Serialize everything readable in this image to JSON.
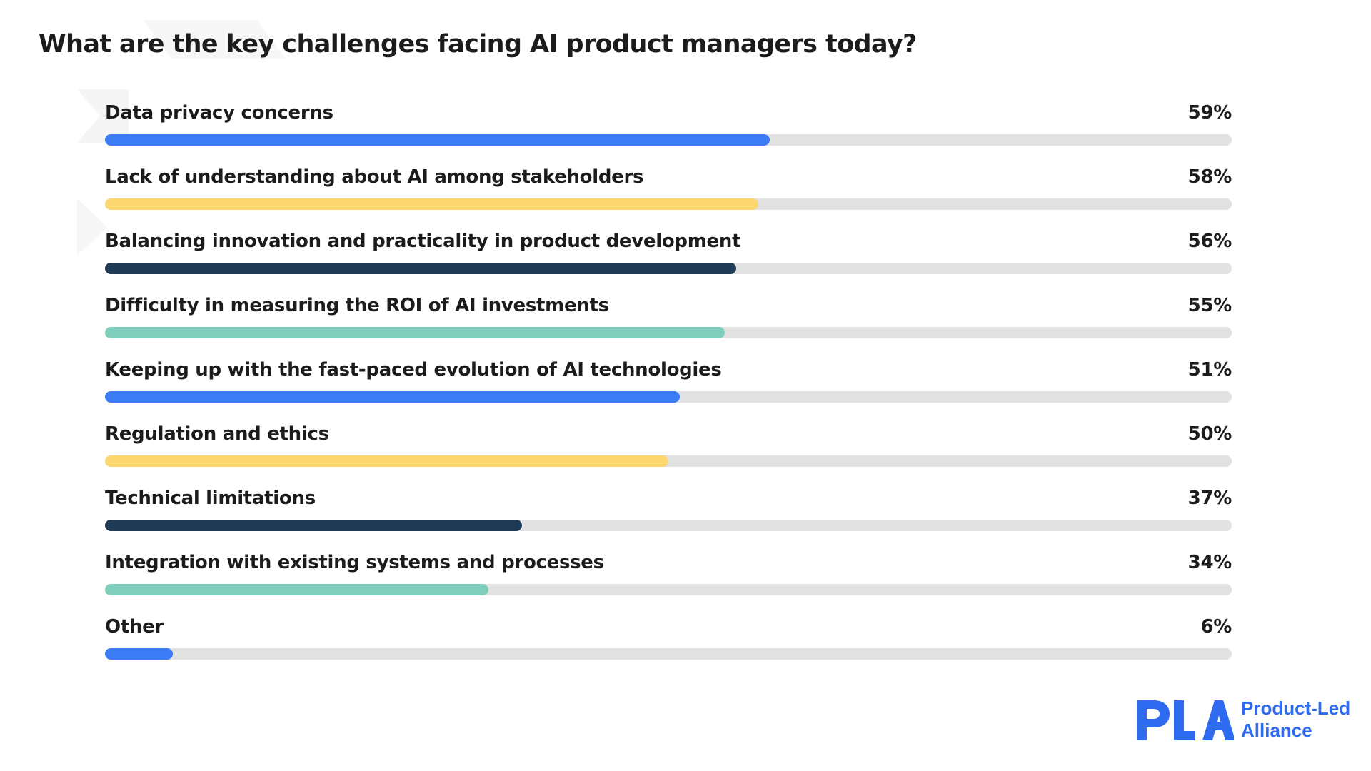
{
  "chart_data": {
    "type": "bar",
    "orientation": "horizontal",
    "title": "What are the key challenges facing AI product managers today?",
    "xlabel": "",
    "ylabel": "",
    "xlim": [
      0,
      100
    ],
    "grid": false,
    "categories": [
      "Data privacy concerns",
      "Lack of understanding about AI among stakeholders",
      "Balancing innovation and practicality in product development",
      "Difficulty in measuring the ROI of AI investments",
      "Keeping up with the fast-paced evolution of AI technologies",
      "Regulation and ethics",
      "Technical limitations",
      "Integration with existing systems and processes",
      "Other"
    ],
    "values": [
      59,
      58,
      56,
      55,
      51,
      50,
      37,
      34,
      6
    ],
    "value_labels": [
      "59%",
      "58%",
      "56%",
      "55%",
      "51%",
      "50%",
      "37%",
      "34%",
      "6%"
    ],
    "bar_colors": [
      "#3b7cf4",
      "#fdd870",
      "#1f3a54",
      "#7fcdbb",
      "#3b7cf4",
      "#fdd870",
      "#1f3a54",
      "#7fcdbb",
      "#3b7cf4"
    ],
    "track_color": "#e2e2e2"
  },
  "logo": {
    "mark": "PLA",
    "line1": "Product-Led",
    "line2": "Alliance",
    "color": "#2f6bf0"
  }
}
